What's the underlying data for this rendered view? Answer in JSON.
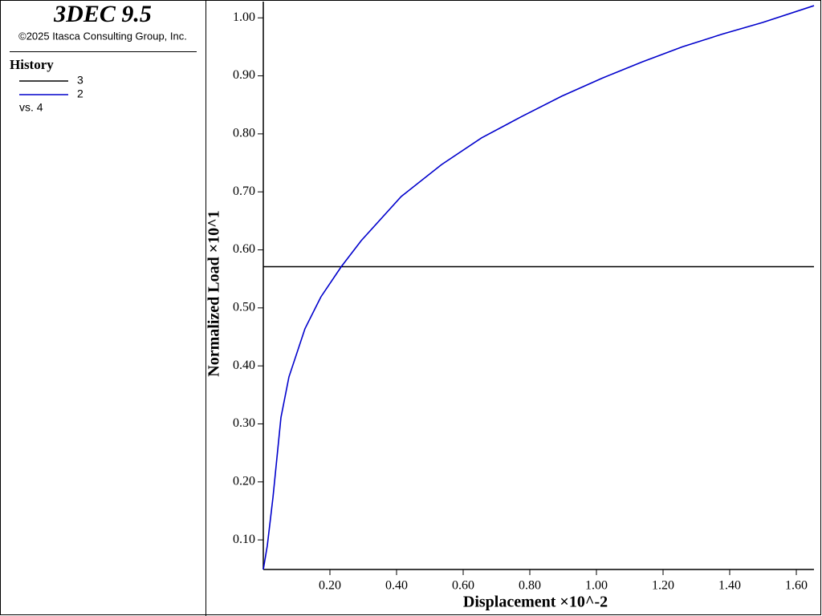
{
  "header": {
    "title": "3DEC 9.5",
    "copyright": "©2025 Itasca Consulting Group, Inc."
  },
  "legend_title": "History",
  "x_series_label": "vs. 4",
  "chart_data": {
    "type": "line",
    "xlabel": "Displacement ×10^-2",
    "ylabel": "Normalized Load ×10^1",
    "xlim": [
      0,
      1.653
    ],
    "ylim": [
      0.049,
      1.028
    ],
    "xticks": [
      {
        "value": 0.2,
        "label": "0.20"
      },
      {
        "value": 0.4,
        "label": "0.40"
      },
      {
        "value": 0.6,
        "label": "0.60"
      },
      {
        "value": 0.8,
        "label": "0.80"
      },
      {
        "value": 1.0,
        "label": "1.00"
      },
      {
        "value": 1.2,
        "label": "1.20"
      },
      {
        "value": 1.4,
        "label": "1.40"
      },
      {
        "value": 1.6,
        "label": "1.60"
      }
    ],
    "yticks": [
      {
        "value": 0.1,
        "label": "0.10"
      },
      {
        "value": 0.2,
        "label": "0.20"
      },
      {
        "value": 0.3,
        "label": "0.30"
      },
      {
        "value": 0.4,
        "label": "0.40"
      },
      {
        "value": 0.5,
        "label": "0.50"
      },
      {
        "value": 0.6,
        "label": "0.60"
      },
      {
        "value": 0.7,
        "label": "0.70"
      },
      {
        "value": 0.8,
        "label": "0.80"
      },
      {
        "value": 0.9,
        "label": "0.90"
      },
      {
        "value": 1.0,
        "label": "1.00"
      }
    ],
    "series": [
      {
        "name": "3",
        "color": "#000000",
        "x": [
          0,
          1.653
        ],
        "values": [
          0.571,
          0.571
        ]
      },
      {
        "name": "2",
        "color": "#0000cc",
        "x": [
          0,
          0.012,
          0.029,
          0.053,
          0.077,
          0.125,
          0.173,
          0.234,
          0.294,
          0.414,
          0.535,
          0.655,
          0.776,
          0.896,
          1.017,
          1.137,
          1.258,
          1.378,
          1.499,
          1.653
        ],
        "values": [
          0.049,
          0.09,
          0.173,
          0.311,
          0.381,
          0.464,
          0.519,
          0.571,
          0.616,
          0.692,
          0.747,
          0.793,
          0.83,
          0.865,
          0.896,
          0.924,
          0.95,
          0.972,
          0.992,
          1.021
        ]
      }
    ]
  }
}
